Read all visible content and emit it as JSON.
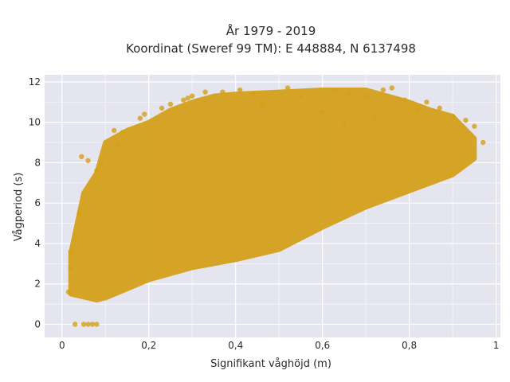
{
  "chart_data": {
    "type": "scatter",
    "title_line1": "År 1979 - 2019",
    "title_line2": "Koordinat (Sweref 99 TM): E 448884, N 6137498",
    "xlabel": "Signifikant våghöjd (m)",
    "ylabel": "Vågperiod (s)",
    "xlim": [
      -0.04,
      1.01
    ],
    "ylim": [
      -0.65,
      12.35
    ],
    "x_ticks": [
      0,
      0.2,
      0.4,
      0.6,
      0.8,
      1
    ],
    "x_tick_labels": [
      "0",
      "0,2",
      "0,4",
      "0,6",
      "0,8",
      "1"
    ],
    "y_ticks": [
      0,
      2,
      4,
      6,
      8,
      10,
      12
    ],
    "y_tick_labels": [
      "0",
      "2",
      "4",
      "6",
      "8",
      "10",
      "12"
    ],
    "grid": true,
    "plot_background": "#e5e5ef",
    "marker_color": "#d4a017",
    "cloud_upper": [
      [
        0.02,
        3.5
      ],
      [
        0.05,
        6.5
      ],
      [
        0.08,
        7.5
      ],
      [
        0.1,
        9.0
      ],
      [
        0.15,
        9.6
      ],
      [
        0.2,
        10.0
      ],
      [
        0.25,
        10.6
      ],
      [
        0.3,
        11.0
      ],
      [
        0.35,
        11.3
      ],
      [
        0.4,
        11.4
      ],
      [
        0.5,
        11.5
      ],
      [
        0.6,
        11.6
      ],
      [
        0.7,
        11.6
      ],
      [
        0.8,
        11.0
      ],
      [
        0.85,
        10.6
      ],
      [
        0.9,
        10.3
      ],
      [
        0.95,
        9.2
      ]
    ],
    "cloud_lower": [
      [
        0.02,
        1.5
      ],
      [
        0.08,
        1.2
      ],
      [
        0.1,
        1.3
      ],
      [
        0.2,
        2.2
      ],
      [
        0.3,
        2.8
      ],
      [
        0.4,
        3.2
      ],
      [
        0.5,
        3.7
      ],
      [
        0.6,
        4.8
      ],
      [
        0.7,
        5.8
      ],
      [
        0.8,
        6.6
      ],
      [
        0.9,
        7.4
      ],
      [
        0.95,
        8.2
      ]
    ],
    "points": [
      [
        0.03,
        0.0
      ],
      [
        0.05,
        0.0
      ],
      [
        0.06,
        0.0
      ],
      [
        0.07,
        0.0
      ],
      [
        0.08,
        0.0
      ],
      [
        0.015,
        1.6
      ],
      [
        0.02,
        2.8
      ],
      [
        0.02,
        3.6
      ],
      [
        0.03,
        4.2
      ],
      [
        0.04,
        5.5
      ],
      [
        0.045,
        8.3
      ],
      [
        0.06,
        8.1
      ],
      [
        0.08,
        7.6
      ],
      [
        0.09,
        7.9
      ],
      [
        0.12,
        9.6
      ],
      [
        0.14,
        9.5
      ],
      [
        0.13,
        8.9
      ],
      [
        0.18,
        10.2
      ],
      [
        0.19,
        10.4
      ],
      [
        0.23,
        10.7
      ],
      [
        0.25,
        10.9
      ],
      [
        0.28,
        11.1
      ],
      [
        0.29,
        11.2
      ],
      [
        0.3,
        11.3
      ],
      [
        0.33,
        11.5
      ],
      [
        0.37,
        11.5
      ],
      [
        0.41,
        11.6
      ],
      [
        0.44,
        11.4
      ],
      [
        0.52,
        11.7
      ],
      [
        0.55,
        11.3
      ],
      [
        0.63,
        11.6
      ],
      [
        0.66,
        11.4
      ],
      [
        0.7,
        11.3
      ],
      [
        0.74,
        11.6
      ],
      [
        0.76,
        11.7
      ],
      [
        0.79,
        11.1
      ],
      [
        0.82,
        10.6
      ],
      [
        0.84,
        11.0
      ],
      [
        0.87,
        10.7
      ],
      [
        0.9,
        10.3
      ],
      [
        0.93,
        10.1
      ],
      [
        0.95,
        9.8
      ],
      [
        0.97,
        9.0
      ],
      [
        0.65,
        9.9
      ],
      [
        0.72,
        10.2
      ],
      [
        0.6,
        10.5
      ],
      [
        0.46,
        10.9
      ]
    ]
  }
}
